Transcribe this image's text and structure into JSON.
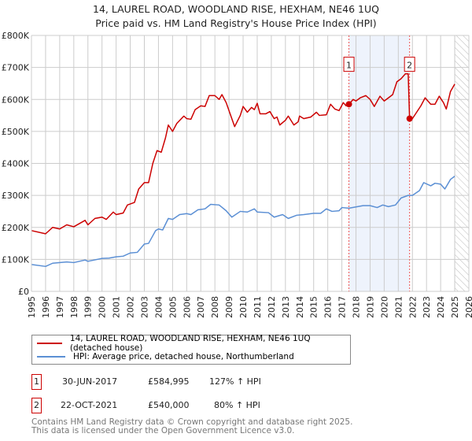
{
  "chart_data": {
    "type": "line",
    "title": "14, LAUREL ROAD, WOODLAND RISE, HEXHAM, NE46 1UQ",
    "subtitle": "Price paid vs. HM Land Registry's House Price Index (HPI)",
    "xlim": [
      1995,
      2026
    ],
    "ylim": [
      0,
      800000
    ],
    "x_ticks": [
      "1995",
      "1996",
      "1997",
      "1998",
      "1999",
      "2000",
      "2001",
      "2002",
      "2003",
      "2004",
      "2005",
      "2006",
      "2007",
      "2008",
      "2009",
      "2010",
      "2011",
      "2012",
      "2013",
      "2014",
      "2015",
      "2016",
      "2017",
      "2018",
      "2019",
      "2020",
      "2021",
      "2022",
      "2023",
      "2024",
      "2025",
      "2026"
    ],
    "y_ticks": [
      {
        "v": 0,
        "label": "£0"
      },
      {
        "v": 100000,
        "label": "£100K"
      },
      {
        "v": 200000,
        "label": "£200K"
      },
      {
        "v": 300000,
        "label": "£300K"
      },
      {
        "v": 400000,
        "label": "£400K"
      },
      {
        "v": 500000,
        "label": "£500K"
      },
      {
        "v": 600000,
        "label": "£600K"
      },
      {
        "v": 700000,
        "label": "£700K"
      },
      {
        "v": 800000,
        "label": "£800K"
      }
    ],
    "grid": true,
    "shaded_range": [
      2017.5,
      2021.8
    ],
    "forecast_hatch_from": 2025.0,
    "series": [
      {
        "name": "14, LAUREL ROAD, WOODLAND RISE, HEXHAM, NE46 1UQ (detached house)",
        "color": "#cc0000",
        "x": [
          1995,
          1996,
          1996.5,
          1997,
          1997.5,
          1998,
          1998.8,
          1999,
          1999.5,
          2000,
          2000.3,
          2000.8,
          2001,
          2001.5,
          2001.8,
          2002.3,
          2002.6,
          2003,
          2003.3,
          2003.6,
          2003.9,
          2004.2,
          2004.5,
          2004.7,
          2005,
          2005.3,
          2005.8,
          2006,
          2006.3,
          2006.6,
          2007,
          2007.3,
          2007.6,
          2008,
          2008.3,
          2008.5,
          2008.8,
          2009.2,
          2009.4,
          2009.8,
          2010,
          2010.3,
          2010.6,
          2010.8,
          2011,
          2011.2,
          2011.6,
          2011.9,
          2012.2,
          2012.4,
          2012.6,
          2013,
          2013.2,
          2013.6,
          2013.9,
          2014,
          2014.3,
          2014.8,
          2015.2,
          2015.4,
          2015.9,
          2016.2,
          2016.5,
          2016.8,
          2017.1,
          2017.3,
          2017.5,
          2017.8,
          2018,
          2018.3,
          2018.7,
          2019,
          2019.3,
          2019.7,
          2020,
          2020.3,
          2020.6,
          2020.9,
          2021.2,
          2021.5,
          2021.7,
          2021.8,
          2022,
          2022.3,
          2022.6,
          2022.9,
          2023.3,
          2023.6,
          2023.9,
          2024.2,
          2024.4,
          2024.7,
          2025
        ],
        "y": [
          190,
          180,
          200,
          195,
          208,
          202,
          222,
          208,
          228,
          232,
          225,
          248,
          240,
          245,
          270,
          278,
          320,
          340,
          340,
          400,
          440,
          435,
          480,
          520,
          500,
          525,
          548,
          540,
          538,
          568,
          580,
          578,
          612,
          612,
          600,
          615,
          590,
          540,
          515,
          550,
          578,
          560,
          575,
          568,
          588,
          555,
          555,
          562,
          540,
          545,
          520,
          535,
          548,
          520,
          530,
          548,
          540,
          545,
          560,
          550,
          552,
          585,
          570,
          565,
          590,
          580,
          585,
          600,
          595,
          605,
          612,
          600,
          578,
          610,
          595,
          605,
          615,
          655,
          665,
          680,
          680,
          540,
          540,
          560,
          580,
          605,
          585,
          585,
          610,
          590,
          570,
          625,
          648
        ]
      },
      {
        "name": "HPI: Average price, detached house, Northumberland",
        "color": "#5b8fd4",
        "x": [
          1995,
          1996,
          1996.5,
          1997.5,
          1998,
          1998.8,
          1999,
          2000,
          2000.5,
          2001,
          2001.5,
          2002,
          2002.5,
          2003,
          2003.3,
          2003.8,
          2004,
          2004.3,
          2004.7,
          2005,
          2005.5,
          2006,
          2006.3,
          2006.8,
          2007.3,
          2007.7,
          2008.3,
          2008.8,
          2009.2,
          2009.8,
          2010.3,
          2010.8,
          2011,
          2011.8,
          2012.2,
          2012.8,
          2013.2,
          2013.8,
          2014.3,
          2015,
          2015.5,
          2015.9,
          2016.3,
          2016.8,
          2017,
          2017.5,
          2018,
          2018.5,
          2019,
          2019.5,
          2019.9,
          2020.3,
          2020.8,
          2021.2,
          2021.7,
          2022,
          2022.5,
          2022.8,
          2023.3,
          2023.6,
          2024,
          2024.3,
          2024.7,
          2025
        ],
        "y": [
          84,
          78,
          88,
          92,
          90,
          98,
          94,
          103,
          104,
          108,
          110,
          120,
          122,
          148,
          150,
          190,
          195,
          192,
          228,
          225,
          240,
          243,
          240,
          255,
          258,
          272,
          270,
          252,
          232,
          250,
          248,
          258,
          248,
          246,
          232,
          240,
          228,
          238,
          240,
          244,
          244,
          258,
          250,
          252,
          262,
          260,
          264,
          268,
          268,
          262,
          270,
          265,
          270,
          292,
          300,
          300,
          315,
          340,
          330,
          338,
          335,
          320,
          350,
          360
        ]
      }
    ],
    "y_units_multiplier": 1000,
    "annotations": [
      {
        "label": "1",
        "x": 2017.5,
        "y": 584995
      },
      {
        "label": "2",
        "x": 2021.8,
        "y": 540000
      }
    ]
  },
  "legend": {
    "items": [
      "14, LAUREL ROAD, WOODLAND RISE, HEXHAM, NE46 1UQ (detached house)",
      "HPI: Average price, detached house, Northumberland"
    ]
  },
  "transactions": [
    {
      "num": "1",
      "date": "30-JUN-2017",
      "price": "£584,995",
      "hpi": "127% ↑ HPI"
    },
    {
      "num": "2",
      "date": "22-OCT-2021",
      "price": "£540,000",
      "hpi": "80% ↑ HPI"
    }
  ],
  "footer": {
    "line1": "Contains HM Land Registry data © Crown copyright and database right 2025.",
    "line2": "This data is licensed under the Open Government Licence v3.0."
  }
}
